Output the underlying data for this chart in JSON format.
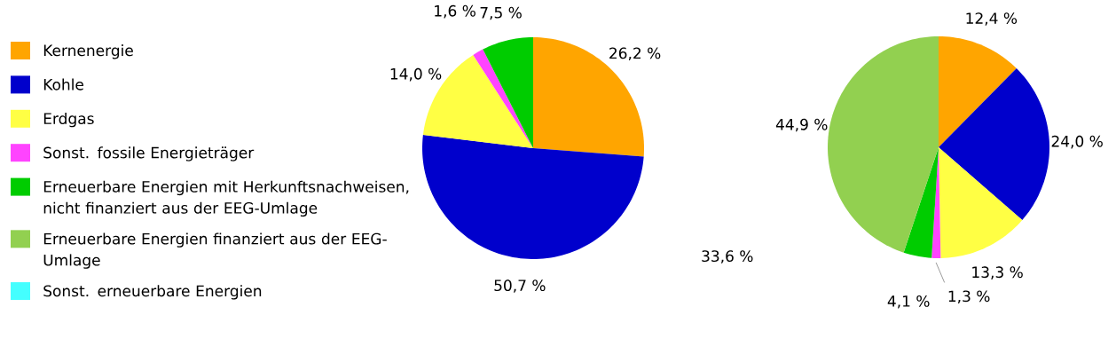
{
  "chart_data": [
    {
      "type": "pie",
      "categories": [
        "Kernenergie",
        "Kohle",
        "Erdgas",
        "Sonst. fossile Energieträger",
        "Erneuerbare Energien mit Herkunftsnachweisen, nicht finanziert aus der EEG-Umlage",
        "Erneuerbare Energien finanziert aus der EEG-Umlage",
        "Sonst. erneuerbare Energien"
      ],
      "values": [
        26.2,
        50.7,
        14.0,
        1.6,
        7.5,
        0,
        0
      ],
      "value_labels": [
        "26,2 %",
        "50,7 %",
        "14,0 %",
        "1,6 %",
        "7,5 %",
        null,
        null
      ],
      "colors": [
        "#ffa500",
        "#0000cc",
        "#ffff44",
        "#ff44ff",
        "#00cc00",
        "#92d050",
        "#44ffff"
      ],
      "legend": "left",
      "annotations": [
        "33,6 %"
      ]
    },
    {
      "type": "pie",
      "categories": [
        null,
        null,
        null,
        null,
        null,
        null
      ],
      "values": [
        12.4,
        24.0,
        13.3,
        1.3,
        4.1,
        44.9
      ],
      "value_labels": [
        "12,4 %",
        "24,0 %",
        "13,3 %",
        "1,3 %",
        "4,1 %",
        "44,9 %"
      ],
      "colors": [
        "#ffa500",
        "#0000cc",
        "#ffff44",
        "#ff44ff",
        "#00cc00",
        "#92d050"
      ]
    }
  ]
}
